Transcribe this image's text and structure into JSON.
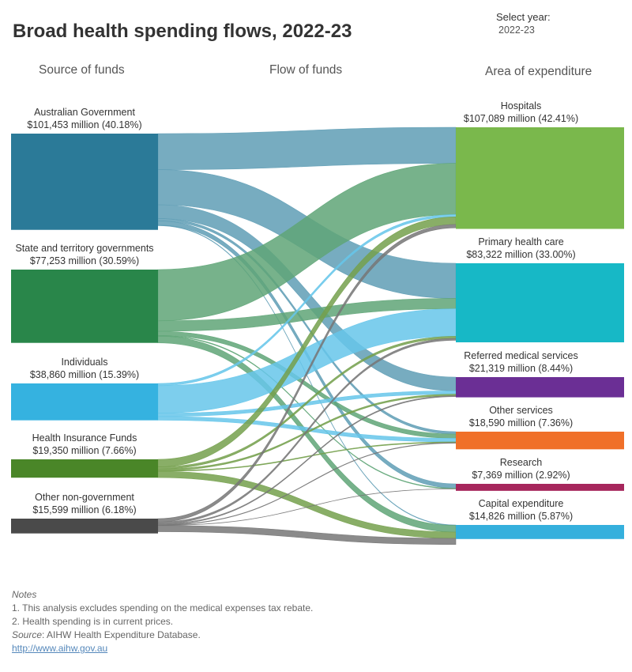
{
  "title": "Broad health spending flows, 2022-23",
  "year_selector": {
    "label": "Select year:",
    "value": "2022-23"
  },
  "columns": {
    "source": "Source of funds",
    "flow": "Flow of funds",
    "area": "Area of expenditure"
  },
  "notes": {
    "heading": "Notes",
    "items": [
      "1.   This analysis excludes spending on the medical expenses tax rebate.",
      "2.   Health spending is in current prices."
    ],
    "source_label": "Source",
    "source_text": ": AIHW Health Expenditure Database.",
    "link": "http://www.aihw.gov.au"
  },
  "chart_data": {
    "type": "sankey",
    "title": "Broad health spending flows, 2022-23",
    "unit": "$ million",
    "sources": [
      {
        "name": "Australian Government",
        "value_label": "$101,453 million (40.18%)",
        "value": 101453,
        "color": "#2b7a98",
        "flow_color": "#5f9db5"
      },
      {
        "name": "State and territory governments",
        "value_label": "$77,253 million (30.59%)",
        "value": 77253,
        "color": "#29864a",
        "flow_color": "#5fa577"
      },
      {
        "name": "Individuals",
        "value_label": "$38,860 million (15.39%)",
        "value": 38860,
        "color": "#35b2e0",
        "flow_color": "#66c6ea"
      },
      {
        "name": "Health Insurance Funds",
        "value_label": "$19,350 million (7.66%)",
        "value": 19350,
        "color": "#4a8628",
        "flow_color": "#74a04c"
      },
      {
        "name": "Other non-government",
        "value_label": "$15,599 million (6.18%)",
        "value": 15599,
        "color": "#4a4a4a",
        "flow_color": "#777777"
      }
    ],
    "targets": [
      {
        "name": "Hospitals",
        "value_label": "$107,089 million (42.41%)",
        "value": 107089,
        "color": "#7ab84c"
      },
      {
        "name": "Primary health care",
        "value_label": "$83,322 million (33.00%)",
        "value": 83322,
        "color": "#17b8c6"
      },
      {
        "name": "Referred medical services",
        "value_label": "$21,319 million (8.44%)",
        "value": 21319,
        "color": "#6b2f95"
      },
      {
        "name": "Other services",
        "value_label": "$18,590 million (7.36%)",
        "value": 18590,
        "color": "#f07029"
      },
      {
        "name": "Research",
        "value_label": "$7,369 million (2.92%)",
        "value": 7369,
        "color": "#a6265c"
      },
      {
        "name": "Capital expenditure",
        "value_label": "$14,826 million (5.87%)",
        "value": 14826,
        "color": "#35b0dd"
      }
    ],
    "flows": [
      {
        "source": 0,
        "target": 0,
        "value": 38000
      },
      {
        "source": 0,
        "target": 1,
        "value": 37000
      },
      {
        "source": 0,
        "target": 2,
        "value": 14500
      },
      {
        "source": 0,
        "target": 3,
        "value": 2500
      },
      {
        "source": 0,
        "target": 4,
        "value": 4500
      },
      {
        "source": 0,
        "target": 5,
        "value": 500
      },
      {
        "source": 1,
        "target": 0,
        "value": 54000
      },
      {
        "source": 1,
        "target": 1,
        "value": 11000
      },
      {
        "source": 1,
        "target": 3,
        "value": 4500
      },
      {
        "source": 1,
        "target": 4,
        "value": 700
      },
      {
        "source": 1,
        "target": 5,
        "value": 7000
      },
      {
        "source": 2,
        "target": 0,
        "value": 2400
      },
      {
        "source": 2,
        "target": 1,
        "value": 29000
      },
      {
        "source": 2,
        "target": 2,
        "value": 3500
      },
      {
        "source": 2,
        "target": 3,
        "value": 3800
      },
      {
        "source": 3,
        "target": 0,
        "value": 8000
      },
      {
        "source": 3,
        "target": 1,
        "value": 2200
      },
      {
        "source": 3,
        "target": 2,
        "value": 1600
      },
      {
        "source": 3,
        "target": 3,
        "value": 800
      },
      {
        "source": 3,
        "target": 5,
        "value": 6600
      },
      {
        "source": 4,
        "target": 0,
        "value": 3600
      },
      {
        "source": 4,
        "target": 1,
        "value": 2000
      },
      {
        "source": 4,
        "target": 2,
        "value": 1000
      },
      {
        "source": 4,
        "target": 3,
        "value": 500
      },
      {
        "source": 4,
        "target": 4,
        "value": 200
      },
      {
        "source": 4,
        "target": 5,
        "value": 6500
      }
    ]
  }
}
